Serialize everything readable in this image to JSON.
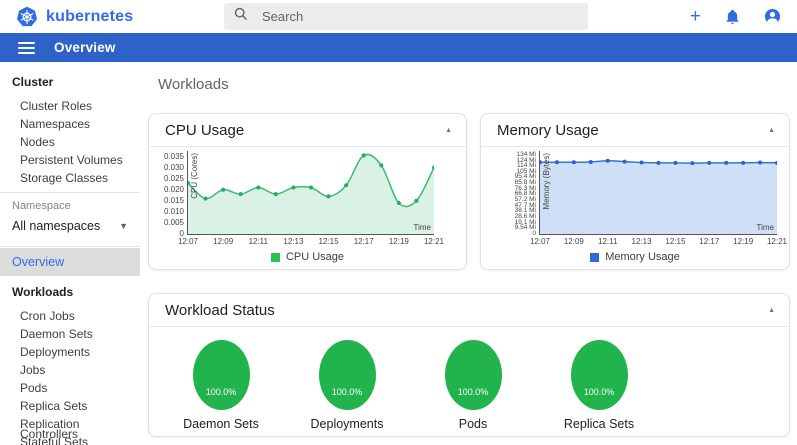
{
  "header": {
    "brand": "kubernetes",
    "search_placeholder": "Search"
  },
  "appbar": {
    "title": "Overview"
  },
  "sidebar": {
    "cluster_header": "Cluster",
    "cluster_items": [
      "Cluster Roles",
      "Namespaces",
      "Nodes",
      "Persistent Volumes",
      "Storage Classes"
    ],
    "namespace_label": "Namespace",
    "namespace_value": "All namespaces",
    "overview": "Overview",
    "workloads_header": "Workloads",
    "workload_items": [
      "Cron Jobs",
      "Daemon Sets",
      "Deployments",
      "Jobs",
      "Pods",
      "Replica Sets",
      "Replication Controllers",
      "Stateful Sets"
    ]
  },
  "main": {
    "page_title": "Workloads"
  },
  "cards": {
    "cpu_title": "CPU Usage",
    "memory_title": "Memory Usage",
    "workload_status_title": "Workload Status"
  },
  "colors": {
    "brand_blue": "#326ce5",
    "appbar_blue": "#2d63c8",
    "selected_item_bg": "#dcdcdc",
    "pie_green": "#21b34c"
  },
  "chart_data": [
    {
      "type": "area",
      "title": "CPU Usage",
      "legend": "CPU Usage",
      "ylabel": "CPU (Cores)",
      "xlabel": "Time",
      "xticks": [
        "12:07",
        "12:09",
        "12:11",
        "12:13",
        "12:15",
        "12:17",
        "12:19",
        "12:21"
      ],
      "x": [
        "12:07",
        "12:08",
        "12:09",
        "12:10",
        "12:11",
        "12:12",
        "12:13",
        "12:14",
        "12:15",
        "12:16",
        "12:17",
        "12:18",
        "12:19",
        "12:20",
        "12:21"
      ],
      "values": [
        0.023,
        0.016,
        0.02,
        0.018,
        0.021,
        0.018,
        0.021,
        0.021,
        0.017,
        0.022,
        0.0355,
        0.031,
        0.014,
        0.015,
        0.03
      ],
      "yticks": [
        {
          "value": 0,
          "label": "0"
        },
        {
          "value": 0.005,
          "label": "0.005"
        },
        {
          "value": 0.01,
          "label": "0.010"
        },
        {
          "value": 0.015,
          "label": "0.015"
        },
        {
          "value": 0.02,
          "label": "0.020"
        },
        {
          "value": 0.025,
          "label": "0.025"
        },
        {
          "value": 0.03,
          "label": "0.030"
        },
        {
          "value": 0.035,
          "label": "0.035"
        }
      ],
      "ymax": 0.0375,
      "line_color": "#3cba74",
      "fill_color": "#d9f2e4",
      "marker_color": "#1fae5b",
      "legend_color": "#2bc155"
    },
    {
      "type": "area",
      "title": "Memory Usage",
      "legend": "Memory Usage",
      "ylabel": "Memory (Bytes)",
      "xlabel": "Time",
      "xticks": [
        "12:07",
        "12:09",
        "12:11",
        "12:13",
        "12:15",
        "12:17",
        "12:19",
        "12:21"
      ],
      "x": [
        "12:07",
        "12:08",
        "12:09",
        "12:10",
        "12:11",
        "12:12",
        "12:13",
        "12:14",
        "12:15",
        "12:16",
        "12:17",
        "12:18",
        "12:19",
        "12:20",
        "12:21"
      ],
      "values": [
        121,
        121,
        121,
        121.5,
        123.5,
        122,
        120.5,
        120,
        120,
        119.5,
        120,
        120,
        120,
        120.5,
        120
      ],
      "values_unit": "Mi",
      "yticks": [
        {
          "value": 0,
          "label": "0"
        },
        {
          "value": 9.54,
          "label": "9.54 Mi"
        },
        {
          "value": 19.1,
          "label": "19.1 Mi"
        },
        {
          "value": 28.6,
          "label": "28.6 Mi"
        },
        {
          "value": 38.1,
          "label": "38.1 Mi"
        },
        {
          "value": 47.7,
          "label": "47.7 Mi"
        },
        {
          "value": 57.2,
          "label": "57.2 Mi"
        },
        {
          "value": 66.8,
          "label": "66.8 Mi"
        },
        {
          "value": 76.3,
          "label": "76.3 Mi"
        },
        {
          "value": 85.8,
          "label": "85.8 Mi"
        },
        {
          "value": 95.4,
          "label": "95.4 Mi"
        },
        {
          "value": 105,
          "label": "105 Mi"
        },
        {
          "value": 114,
          "label": "114 Mi"
        },
        {
          "value": 124,
          "label": "124 Mi"
        },
        {
          "value": 134,
          "label": "134 Mi"
        }
      ],
      "ymax": 140,
      "line_color": "#3b72d8",
      "fill_color": "#cfdff6",
      "marker_color": "#2a62d2",
      "legend_color": "#316bdb"
    },
    {
      "type": "pie",
      "title": "Workload Status",
      "color": "#21b34c",
      "items": [
        {
          "label": "Daemon Sets",
          "value": "100.0%",
          "percent": 100
        },
        {
          "label": "Deployments",
          "value": "100.0%",
          "percent": 100
        },
        {
          "label": "Pods",
          "value": "100.0%",
          "percent": 100
        },
        {
          "label": "Replica Sets",
          "value": "100.0%",
          "percent": 100
        }
      ]
    }
  ]
}
